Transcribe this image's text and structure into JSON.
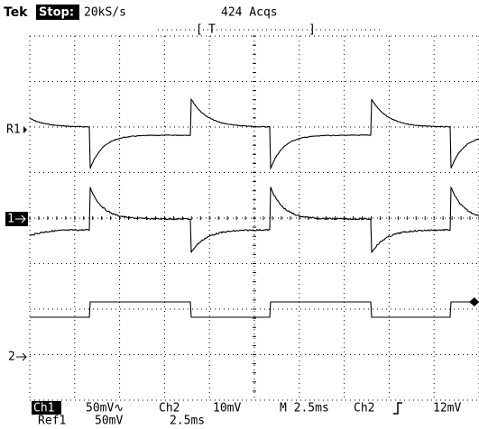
{
  "header": {
    "brand": "Tek",
    "status": "Stop:",
    "sample_rate": "20kS/s",
    "acquisitions": "424 Acqs"
  },
  "trigger_window": {
    "left": "[",
    "marker": "T",
    "right": "]"
  },
  "markers": {
    "ref1": "R1",
    "ch1": "1",
    "ch2": "2"
  },
  "footer": {
    "row1": {
      "ch1": "Ch1",
      "ch1_scale": "50mV∿",
      "ch2": "Ch2",
      "ch2_scale": "10mV",
      "timebase": "M 2.5ms",
      "trigger_source": "Ch2",
      "trigger_level": "12mV"
    },
    "row2": {
      "ref1": "Ref1",
      "ref1_scale": "50mV",
      "ref1_time": "2.5ms"
    }
  }
}
